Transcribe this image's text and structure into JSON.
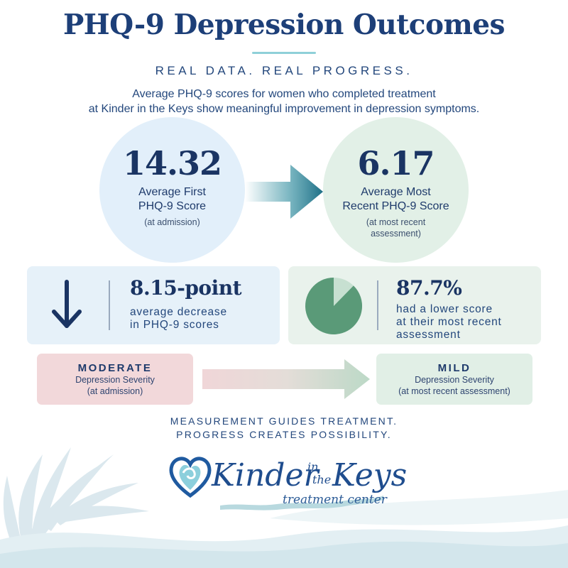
{
  "header": {
    "title": "PHQ-9 Depression Outcomes",
    "tagline": "REAL DATA. REAL PROGRESS.",
    "intro_line1": "Average PHQ-9 scores for women who completed treatment",
    "intro_line2": "at Kinder in the Keys show meaningful improvement in depression symptoms."
  },
  "first_score": {
    "value": "14.32",
    "label_line1": "Average First",
    "label_line2": "PHQ-9 Score",
    "sub": "(at admission)"
  },
  "recent_score": {
    "value": "6.17",
    "label_line1": "Average Most",
    "label_line2": "Recent PHQ-9 Score",
    "sub_line1": "(at most recent",
    "sub_line2": "assessment)"
  },
  "decrease": {
    "value": "8.15-point",
    "text_line1": "average decrease",
    "text_line2": "in PHQ-9 scores"
  },
  "lower_score": {
    "value": "87.7%",
    "fraction": 0.877,
    "text_line1": "had a lower score",
    "text_line2": "at their most recent",
    "text_line3": "assessment"
  },
  "severity": {
    "from_title": "MODERATE",
    "from_line1": "Depression Severity",
    "from_line2": "(at admission)",
    "to_title": "MILD",
    "to_line1": "Depression Severity",
    "to_line2": "(at most recent assessment)"
  },
  "closing": {
    "line1": "MEASUREMENT GUIDES TREATMENT.",
    "line2": "PROGRESS CREATES POSSIBILITY."
  },
  "logo": {
    "word1": "Kinder",
    "word2": "in",
    "word3": "the",
    "word4": "Keys",
    "subtitle": "treatment center"
  },
  "colors": {
    "navy": "#1d3f78",
    "teal": "#2a8a9c",
    "green": "#5a9a78",
    "green_light": "#b9d9c6"
  }
}
